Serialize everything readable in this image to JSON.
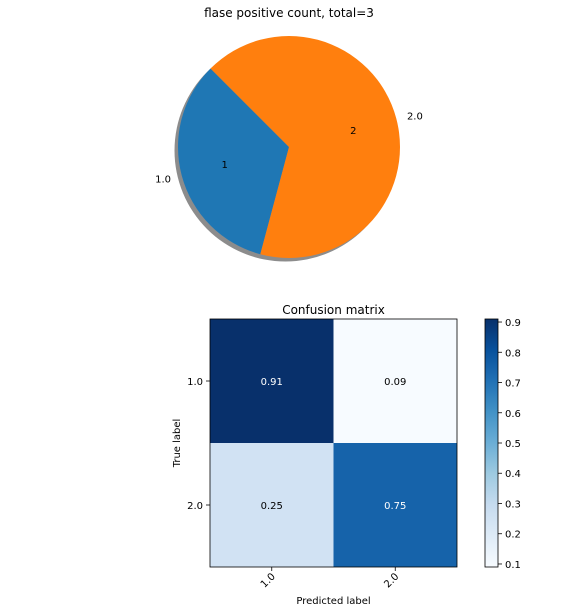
{
  "chart_data": [
    {
      "type": "pie",
      "title": "flase positive count, total=3",
      "categories": [
        "1.0",
        "2.0"
      ],
      "values": [
        1,
        2
      ],
      "autopct_labels": [
        "1",
        "2"
      ],
      "colors": [
        "#1f77b4",
        "#ff7f0e"
      ],
      "shadow": true
    },
    {
      "type": "heatmap",
      "title": "Confusion matrix",
      "xlabel": "Predicted label",
      "ylabel": "True label",
      "x_categories": [
        "1.0",
        "2.0"
      ],
      "y_categories": [
        "1.0",
        "2.0"
      ],
      "values": [
        [
          0.91,
          0.09
        ],
        [
          0.25,
          0.75
        ]
      ],
      "cell_labels": [
        [
          "0.91",
          "0.09"
        ],
        [
          "0.25",
          "0.75"
        ]
      ],
      "colormap": "Blues",
      "colorbar": {
        "range": [
          0.09,
          0.91
        ],
        "ticks": [
          "0.1",
          "0.2",
          "0.3",
          "0.4",
          "0.5",
          "0.6",
          "0.7",
          "0.8",
          "0.9"
        ]
      }
    }
  ]
}
